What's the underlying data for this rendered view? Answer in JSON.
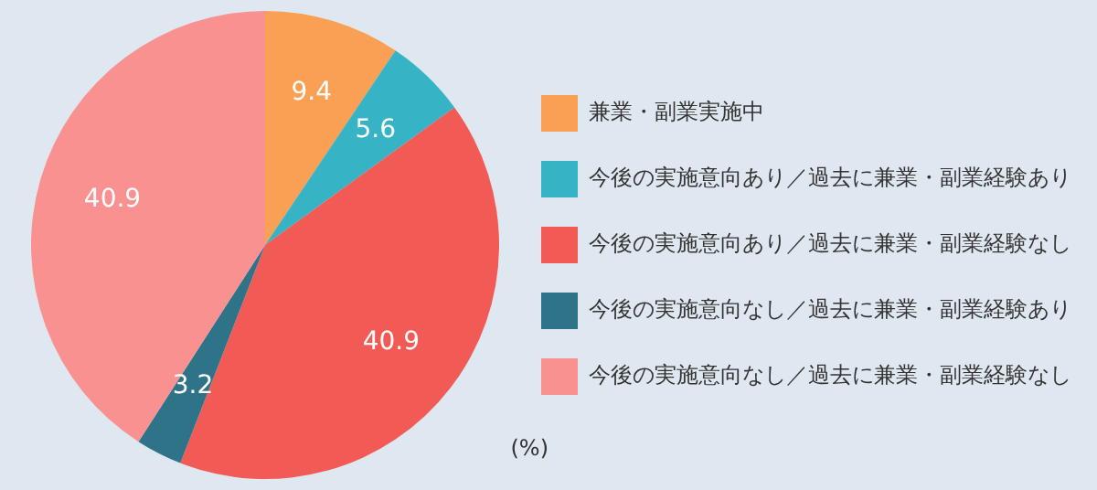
{
  "chart_data": {
    "type": "pie",
    "categories": [
      "兼業・副業実施中",
      "今後の実施意向あり／過去に兼業・副業経験あり",
      "今後の実施意向あり／過去に兼業・副業経験なし",
      "今後の実施意向なし／過去に兼業・副業経験あり",
      "今後の実施意向なし／過去に兼業・副業経験なし"
    ],
    "values": [
      9.4,
      5.6,
      40.9,
      3.2,
      40.9
    ],
    "colors": [
      "#f9a055",
      "#36b4c6",
      "#f25a55",
      "#2e7387",
      "#f99190"
    ],
    "data_labels": true,
    "legend": "right",
    "annotations": [
      "(%)"
    ]
  }
}
